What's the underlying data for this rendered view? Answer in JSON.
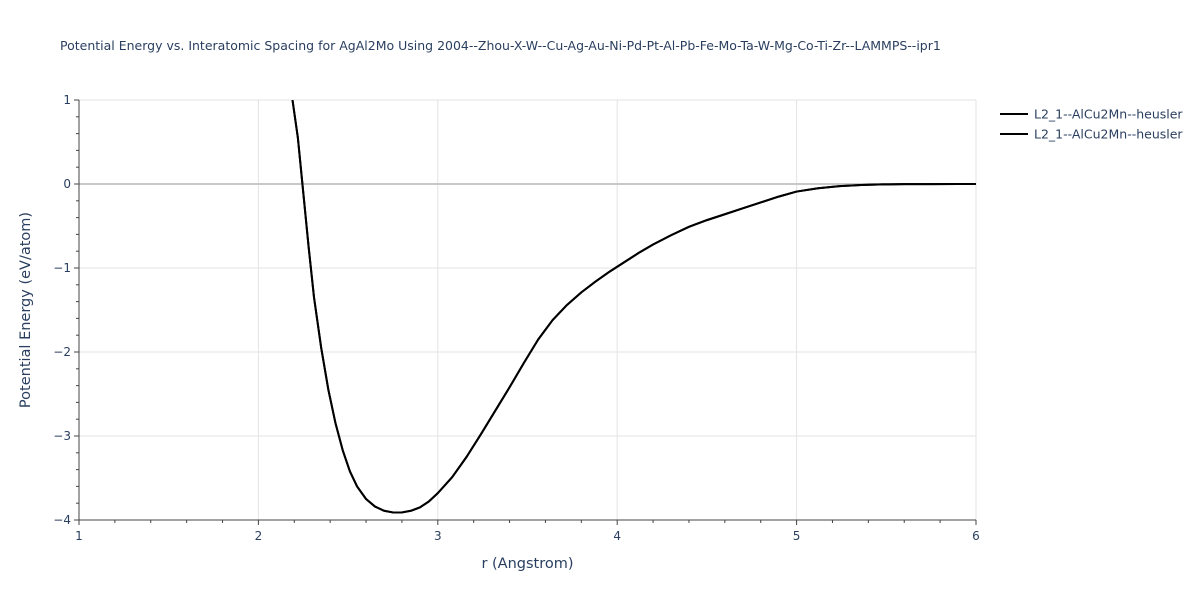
{
  "chart_data": {
    "type": "line",
    "title": "Potential Energy vs. Interatomic Spacing for AgAl2Mo Using 2004--Zhou-X-W--Cu-Ag-Au-Ni-Pd-Pt-Al-Pb-Fe-Mo-Ta-W-Mg-Co-Ti-Zr--LAMMPS--ipr1",
    "xlabel": "r (Angstrom)",
    "ylabel": "Potential Energy (eV/atom)",
    "xlim": [
      1,
      6
    ],
    "ylim": [
      -4,
      1
    ],
    "xticks": [
      1,
      2,
      3,
      4,
      5,
      6
    ],
    "xtick_labels": [
      "1",
      "2",
      "3",
      "4",
      "5",
      "6"
    ],
    "yticks": [
      -4,
      -3,
      -2,
      -1,
      0,
      1
    ],
    "ytick_labels": [
      "−4",
      "−3",
      "−2",
      "−1",
      "0",
      "1"
    ],
    "grid": true,
    "legend_position": "top-right",
    "series": [
      {
        "name": "L2_1--AlCu2Mn--heusler",
        "color": "#000000",
        "x": [
          2.19,
          2.22,
          2.25,
          2.28,
          2.31,
          2.35,
          2.39,
          2.43,
          2.47,
          2.51,
          2.55,
          2.6,
          2.65,
          2.7,
          2.75,
          2.8,
          2.85,
          2.9,
          2.95,
          3.0,
          3.08,
          3.16,
          3.24,
          3.32,
          3.4,
          3.48,
          3.56,
          3.64,
          3.72,
          3.8,
          3.88,
          3.96,
          4.04,
          4.12,
          4.2,
          4.3,
          4.4,
          4.5,
          4.6,
          4.7,
          4.8,
          4.9,
          5.0,
          5.12,
          5.24,
          5.36,
          5.48,
          5.6,
          5.75,
          5.9,
          6.0
        ],
        "y": [
          1.0,
          0.55,
          -0.1,
          -0.75,
          -1.35,
          -1.95,
          -2.45,
          -2.85,
          -3.17,
          -3.42,
          -3.6,
          -3.75,
          -3.84,
          -3.89,
          -3.91,
          -3.91,
          -3.89,
          -3.85,
          -3.78,
          -3.68,
          -3.49,
          -3.25,
          -2.98,
          -2.7,
          -2.42,
          -2.13,
          -1.85,
          -1.62,
          -1.44,
          -1.29,
          -1.16,
          -1.04,
          -0.93,
          -0.82,
          -0.72,
          -0.61,
          -0.51,
          -0.43,
          -0.36,
          -0.29,
          -0.22,
          -0.15,
          -0.09,
          -0.05,
          -0.025,
          -0.012,
          -0.005,
          -0.002,
          -0.001,
          0.0,
          0.0
        ]
      },
      {
        "name": "L2_1--AlCu2Mn--heusler",
        "color": "#000000",
        "x": [
          2.19,
          2.22,
          2.25,
          2.28,
          2.31,
          2.35,
          2.39,
          2.43,
          2.47,
          2.51,
          2.55,
          2.6,
          2.65,
          2.7,
          2.75,
          2.8,
          2.85,
          2.9,
          2.95,
          3.0,
          3.08,
          3.16,
          3.24,
          3.32,
          3.4,
          3.48,
          3.56,
          3.64,
          3.72,
          3.8,
          3.88,
          3.96,
          4.04,
          4.12,
          4.2,
          4.3,
          4.4,
          4.5,
          4.6,
          4.7,
          4.8,
          4.9,
          5.0,
          5.12,
          5.24,
          5.36,
          5.48,
          5.6,
          5.75,
          5.9,
          6.0
        ],
        "y": [
          1.0,
          0.55,
          -0.1,
          -0.75,
          -1.35,
          -1.95,
          -2.45,
          -2.85,
          -3.17,
          -3.42,
          -3.6,
          -3.75,
          -3.84,
          -3.89,
          -3.91,
          -3.91,
          -3.89,
          -3.85,
          -3.78,
          -3.68,
          -3.49,
          -3.25,
          -2.98,
          -2.7,
          -2.42,
          -2.13,
          -1.85,
          -1.62,
          -1.44,
          -1.29,
          -1.16,
          -1.04,
          -0.93,
          -0.82,
          -0.72,
          -0.61,
          -0.51,
          -0.43,
          -0.36,
          -0.29,
          -0.22,
          -0.15,
          -0.09,
          -0.05,
          -0.025,
          -0.012,
          -0.005,
          -0.002,
          -0.001,
          0.0,
          0.0
        ]
      }
    ]
  }
}
